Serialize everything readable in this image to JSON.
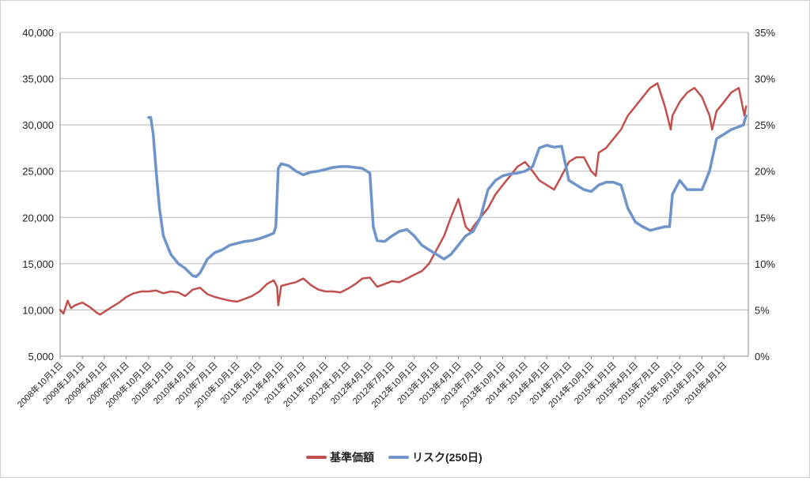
{
  "chart_data": {
    "type": "line",
    "title": "",
    "xlabel": "",
    "ylabel": "",
    "y_left": {
      "ylim": [
        5000,
        40000
      ],
      "ticks": [
        "5,000",
        "10,000",
        "15,000",
        "20,000",
        "25,000",
        "30,000",
        "35,000",
        "40,000"
      ]
    },
    "y_right": {
      "ylim": [
        0,
        0.35
      ],
      "ticks": [
        "0%",
        "5%",
        "10%",
        "15%",
        "20%",
        "25%",
        "30%",
        "35%"
      ]
    },
    "x_ticks": [
      "2008年10月1日",
      "2009年1月1日",
      "2009年4月1日",
      "2009年7月1日",
      "2009年10月1日",
      "2010年1月1日",
      "2010年4月1日",
      "2010年7月1日",
      "2010年10月1日",
      "2011年1月1日",
      "2011年4月1日",
      "2011年7月1日",
      "2011年10月1日",
      "2012年1月1日",
      "2012年4月1日",
      "2012年7月1日",
      "2012年10月1日",
      "2013年1月1日",
      "2013年4月1日",
      "2013年7月1日",
      "2013年10月1日",
      "2014年1月1日",
      "2014年4月1日",
      "2014年7月1日",
      "2014年10月1日",
      "2015年1月1日",
      "2015年4月1日",
      "2015年7月1日",
      "2015年10月1日",
      "2016年1月1日",
      "2016年4月1日"
    ],
    "grid": true,
    "legend_position": "bottom",
    "series": [
      {
        "name": "基準価額",
        "axis": "left",
        "color": "#c0504d",
        "x": [
          "2008-10-01",
          "2008-10-15",
          "2008-11-01",
          "2008-11-15",
          "2008-12-01",
          "2009-01-01",
          "2009-02-01",
          "2009-03-01",
          "2009-03-15",
          "2009-04-01",
          "2009-05-01",
          "2009-06-01",
          "2009-07-01",
          "2009-08-01",
          "2009-09-01",
          "2009-10-01",
          "2009-11-01",
          "2009-12-01",
          "2010-01-01",
          "2010-02-01",
          "2010-03-01",
          "2010-04-01",
          "2010-05-01",
          "2010-06-01",
          "2010-07-01",
          "2010-08-01",
          "2010-09-01",
          "2010-10-01",
          "2010-11-01",
          "2010-12-01",
          "2011-01-01",
          "2011-02-01",
          "2011-03-01",
          "2011-03-15",
          "2011-03-20",
          "2011-04-01",
          "2011-05-01",
          "2011-06-01",
          "2011-07-01",
          "2011-08-01",
          "2011-09-01",
          "2011-10-01",
          "2011-11-01",
          "2011-12-01",
          "2012-01-01",
          "2012-02-01",
          "2012-03-01",
          "2012-04-01",
          "2012-05-01",
          "2012-06-01",
          "2012-07-01",
          "2012-08-01",
          "2012-09-01",
          "2012-10-01",
          "2012-11-01",
          "2012-12-01",
          "2013-01-01",
          "2013-02-01",
          "2013-03-01",
          "2013-04-01",
          "2013-05-01",
          "2013-05-20",
          "2013-06-01",
          "2013-07-01",
          "2013-08-01",
          "2013-09-01",
          "2013-10-01",
          "2013-11-01",
          "2013-12-01",
          "2014-01-01",
          "2014-02-01",
          "2014-03-01",
          "2014-04-01",
          "2014-05-01",
          "2014-06-01",
          "2014-07-01",
          "2014-08-01",
          "2014-09-01",
          "2014-10-01",
          "2014-10-20",
          "2014-11-01",
          "2014-12-01",
          "2015-01-01",
          "2015-02-01",
          "2015-03-01",
          "2015-04-01",
          "2015-05-01",
          "2015-06-01",
          "2015-07-01",
          "2015-08-01",
          "2015-08-25",
          "2015-09-01",
          "2015-10-01",
          "2015-11-01",
          "2015-12-01",
          "2016-01-01",
          "2016-02-01",
          "2016-02-12",
          "2016-03-01",
          "2016-04-01",
          "2016-05-01",
          "2016-06-01",
          "2016-06-24",
          "2016-07-01"
        ],
        "y": [
          10000,
          9600,
          11000,
          10200,
          10500,
          10800,
          10300,
          9700,
          9500,
          9800,
          10300,
          10800,
          11400,
          11800,
          12000,
          12000,
          12100,
          11800,
          12000,
          11900,
          11500,
          12200,
          12400,
          11700,
          11400,
          11200,
          11000,
          10900,
          11200,
          11500,
          12000,
          12800,
          13200,
          12500,
          10500,
          12600,
          12800,
          13000,
          13400,
          12700,
          12200,
          12000,
          12000,
          11900,
          12300,
          12800,
          13400,
          13500,
          12500,
          12800,
          13100,
          13000,
          13400,
          13800,
          14200,
          15000,
          16500,
          18000,
          20000,
          22000,
          19000,
          18500,
          19000,
          20000,
          21000,
          22500,
          23500,
          24500,
          25500,
          26000,
          25000,
          24000,
          23500,
          23000,
          24500,
          26000,
          26500,
          26500,
          25000,
          24500,
          27000,
          27500,
          28500,
          29500,
          31000,
          32000,
          33000,
          34000,
          34500,
          32000,
          29500,
          31000,
          32500,
          33500,
          34000,
          33000,
          31000,
          29500,
          31500,
          32500,
          33500,
          34000,
          31000,
          32000
        ]
      },
      {
        "name": "リスク(250日)",
        "axis": "right",
        "color": "#6f94c9",
        "x": [
          "2009-10-01",
          "2009-10-10",
          "2009-10-20",
          "2009-11-01",
          "2009-11-15",
          "2009-12-01",
          "2010-01-01",
          "2010-02-01",
          "2010-03-01",
          "2010-04-01",
          "2010-04-15",
          "2010-05-01",
          "2010-06-01",
          "2010-07-01",
          "2010-08-01",
          "2010-09-01",
          "2010-10-01",
          "2010-11-01",
          "2010-12-01",
          "2011-01-01",
          "2011-02-01",
          "2011-03-01",
          "2011-03-10",
          "2011-03-20",
          "2011-04-01",
          "2011-05-01",
          "2011-06-01",
          "2011-07-01",
          "2011-08-01",
          "2011-09-01",
          "2011-10-01",
          "2011-11-01",
          "2011-12-01",
          "2012-01-01",
          "2012-02-01",
          "2012-03-01",
          "2012-04-01",
          "2012-04-15",
          "2012-05-01",
          "2012-06-01",
          "2012-07-01",
          "2012-08-01",
          "2012-09-01",
          "2012-10-01",
          "2012-11-01",
          "2012-12-01",
          "2013-01-01",
          "2013-02-01",
          "2013-03-01",
          "2013-04-01",
          "2013-05-01",
          "2013-06-01",
          "2013-07-01",
          "2013-08-01",
          "2013-09-01",
          "2013-10-01",
          "2013-11-01",
          "2013-12-01",
          "2014-01-01",
          "2014-02-01",
          "2014-03-01",
          "2014-04-01",
          "2014-05-01",
          "2014-06-01",
          "2014-07-01",
          "2014-08-01",
          "2014-09-01",
          "2014-10-01",
          "2014-11-01",
          "2014-12-01",
          "2015-01-01",
          "2015-02-01",
          "2015-03-01",
          "2015-04-01",
          "2015-05-01",
          "2015-06-01",
          "2015-07-01",
          "2015-08-01",
          "2015-08-20",
          "2015-09-01",
          "2015-10-01",
          "2015-11-01",
          "2015-12-01",
          "2016-01-01",
          "2016-02-01",
          "2016-03-01",
          "2016-04-01",
          "2016-05-01",
          "2016-06-01",
          "2016-06-20",
          "2016-07-01"
        ],
        "y": [
          0.258,
          0.258,
          0.24,
          0.2,
          0.16,
          0.13,
          0.11,
          0.1,
          0.095,
          0.087,
          0.086,
          0.09,
          0.105,
          0.112,
          0.115,
          0.12,
          0.122,
          0.124,
          0.125,
          0.127,
          0.13,
          0.133,
          0.14,
          0.203,
          0.208,
          0.206,
          0.2,
          0.196,
          0.199,
          0.2,
          0.202,
          0.204,
          0.205,
          0.205,
          0.204,
          0.203,
          0.198,
          0.14,
          0.125,
          0.124,
          0.13,
          0.135,
          0.137,
          0.13,
          0.12,
          0.115,
          0.11,
          0.105,
          0.11,
          0.12,
          0.13,
          0.135,
          0.15,
          0.18,
          0.19,
          0.195,
          0.197,
          0.198,
          0.2,
          0.205,
          0.225,
          0.228,
          0.226,
          0.227,
          0.19,
          0.185,
          0.18,
          0.178,
          0.185,
          0.188,
          0.188,
          0.185,
          0.16,
          0.145,
          0.14,
          0.136,
          0.138,
          0.14,
          0.14,
          0.175,
          0.19,
          0.18,
          0.18,
          0.18,
          0.2,
          0.235,
          0.24,
          0.245,
          0.248,
          0.25,
          0.26
        ]
      }
    ]
  }
}
